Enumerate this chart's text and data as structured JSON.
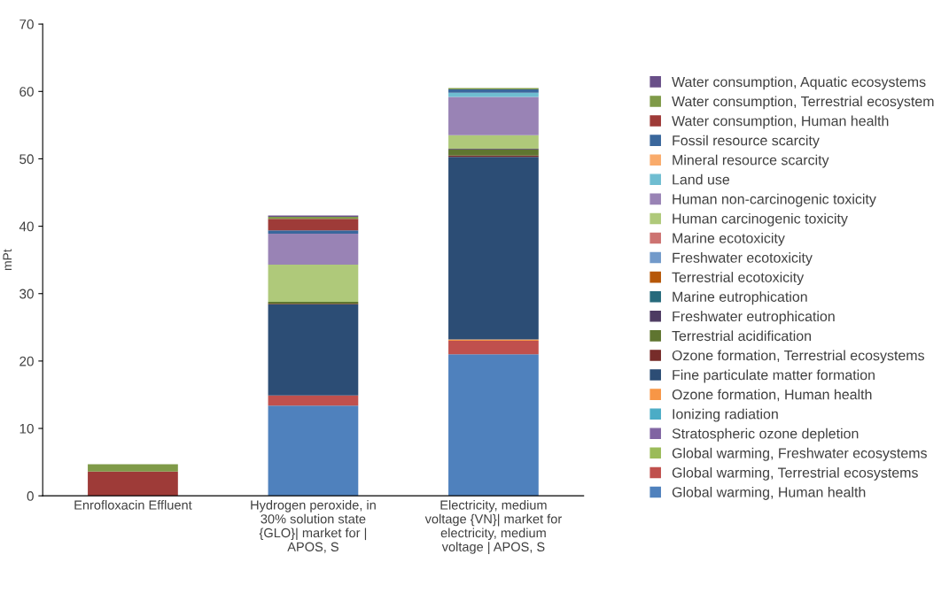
{
  "chart_data": {
    "type": "bar",
    "stacked": true,
    "ylabel": "mPt",
    "categories": [
      "Enrofloxacin Effluent",
      "Hydrogen peroxide, in\n30% solution state\n{GLO}| market for |\nAPOS, S",
      "Electricity, medium\nvoltage {VN}| market for\nelectricity, medium\nvoltage | APOS, S"
    ],
    "ylim": [
      0,
      70
    ],
    "yticks": [
      0,
      10,
      20,
      30,
      40,
      50,
      60,
      70
    ],
    "grid": false,
    "legend": "right",
    "series": [
      {
        "name": "Global warming, Human health",
        "color": "#4f81bd",
        "values": [
          0,
          13.4,
          21.0
        ]
      },
      {
        "name": "Global warming, Terrestrial ecosystems",
        "color": "#c0504d",
        "values": [
          0,
          1.5,
          2.0
        ]
      },
      {
        "name": "Global warming, Freshwater ecosystems",
        "color": "#9bbb59",
        "values": [
          0,
          0,
          0
        ]
      },
      {
        "name": "Stratospheric ozone depletion",
        "color": "#8064a2",
        "values": [
          0,
          0,
          0
        ]
      },
      {
        "name": "Ionizing radiation",
        "color": "#4bacc6",
        "values": [
          0,
          0,
          0
        ]
      },
      {
        "name": "Ozone formation, Human health",
        "color": "#f79646",
        "values": [
          0,
          0,
          0.2
        ]
      },
      {
        "name": "Fine particulate matter formation",
        "color": "#2c4d75",
        "values": [
          0,
          13.5,
          27.1
        ]
      },
      {
        "name": "Ozone formation, Terrestrial ecosystems",
        "color": "#772c2a",
        "values": [
          0,
          0.1,
          0.2
        ]
      },
      {
        "name": "Terrestrial acidification",
        "color": "#5f7530",
        "values": [
          0,
          0.3,
          0.9
        ]
      },
      {
        "name": "Freshwater eutrophication",
        "color": "#4d3b62",
        "values": [
          0,
          0,
          0.1
        ]
      },
      {
        "name": "Marine eutrophication",
        "color": "#276a7c",
        "values": [
          0,
          0,
          0
        ]
      },
      {
        "name": "Terrestrial ecotoxicity",
        "color": "#b65708",
        "values": [
          0,
          0,
          0
        ]
      },
      {
        "name": "Freshwater ecotoxicity",
        "color": "#729aca",
        "values": [
          0,
          0,
          0
        ]
      },
      {
        "name": "Marine ecotoxicity",
        "color": "#cd7371",
        "values": [
          0,
          0,
          0
        ]
      },
      {
        "name": "Human carcinogenic toxicity",
        "color": "#afc97a",
        "values": [
          0,
          5.5,
          2.0
        ]
      },
      {
        "name": "Human non-carcinogenic toxicity",
        "color": "#9983b5",
        "values": [
          0,
          4.6,
          5.7
        ]
      },
      {
        "name": "Land use",
        "color": "#6fbdd1",
        "values": [
          0,
          0,
          0.6
        ]
      },
      {
        "name": "Mineral resource scarcity",
        "color": "#f9ab6b",
        "values": [
          0,
          0,
          0
        ]
      },
      {
        "name": "Fossil resource scarcity",
        "color": "#3a679c",
        "values": [
          0,
          0.5,
          0.5
        ]
      },
      {
        "name": "Water consumption, Human health",
        "color": "#9e3b38",
        "values": [
          3.6,
          1.7,
          0
        ]
      },
      {
        "name": "Water consumption, Terrestrial ecosystem",
        "color": "#7f9a48",
        "values": [
          1.1,
          0.3,
          0.2
        ]
      },
      {
        "name": "Water consumption, Aquatic ecosystems",
        "color": "#694f88",
        "values": [
          null,
          0.2,
          0
        ]
      }
    ]
  }
}
